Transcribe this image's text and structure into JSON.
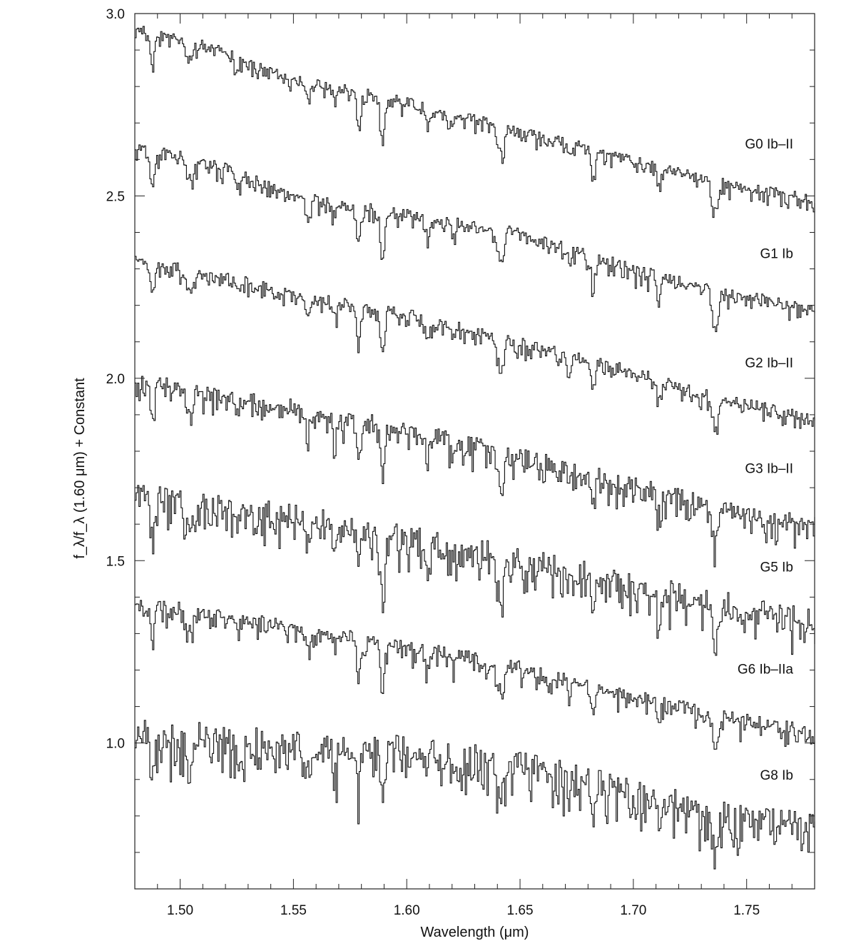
{
  "chart_data": {
    "type": "line",
    "title": "",
    "xlabel": "Wavelength (μm)",
    "ylabel": "f_λ/f_λ (1.60 μm) + Constant",
    "xlim": [
      1.48,
      1.78
    ],
    "ylim": [
      0.6,
      3.0
    ],
    "x_ticks": [
      {
        "value": 1.5,
        "label": "1.50"
      },
      {
        "value": 1.55,
        "label": "1.55"
      },
      {
        "value": 1.6,
        "label": "1.60"
      },
      {
        "value": 1.65,
        "label": "1.65"
      },
      {
        "value": 1.7,
        "label": "1.70"
      },
      {
        "value": 1.75,
        "label": "1.75"
      }
    ],
    "y_ticks": [
      {
        "value": 1.0,
        "label": "1.0"
      },
      {
        "value": 1.5,
        "label": "1.5"
      },
      {
        "value": 2.0,
        "label": "2.0"
      },
      {
        "value": 2.5,
        "label": "2.5"
      },
      {
        "value": 3.0,
        "label": "3.0"
      }
    ],
    "x_minor_step": 0.01,
    "y_minor_step": 0.1,
    "grid": false,
    "legend": "none",
    "series": [
      {
        "name": "G0 Ib–II",
        "label_y": 2.63,
        "anchors": [
          [
            1.48,
            2.96
          ],
          [
            1.52,
            2.9
          ],
          [
            1.55,
            2.82
          ],
          [
            1.6,
            2.76
          ],
          [
            1.65,
            2.68
          ],
          [
            1.7,
            2.6
          ],
          [
            1.73,
            2.55
          ],
          [
            1.78,
            2.49
          ]
        ],
        "noise": 0.012,
        "depth": 1.0
      },
      {
        "name": "G1 Ib",
        "label_y": 2.33,
        "anchors": [
          [
            1.48,
            2.64
          ],
          [
            1.52,
            2.58
          ],
          [
            1.55,
            2.5
          ],
          [
            1.6,
            2.45
          ],
          [
            1.65,
            2.4
          ],
          [
            1.7,
            2.3
          ],
          [
            1.73,
            2.25
          ],
          [
            1.78,
            2.19
          ]
        ],
        "noise": 0.014,
        "depth": 1.05
      },
      {
        "name": "G2 Ib–II",
        "label_y": 2.03,
        "anchors": [
          [
            1.48,
            2.33
          ],
          [
            1.52,
            2.28
          ],
          [
            1.55,
            2.23
          ],
          [
            1.6,
            2.18
          ],
          [
            1.65,
            2.1
          ],
          [
            1.7,
            2.02
          ],
          [
            1.73,
            1.96
          ],
          [
            1.78,
            1.89
          ]
        ],
        "noise": 0.013,
        "depth": 1.0
      },
      {
        "name": "G3 Ib–II",
        "label_y": 1.74,
        "anchors": [
          [
            1.48,
            2.0
          ],
          [
            1.52,
            1.95
          ],
          [
            1.55,
            1.92
          ],
          [
            1.6,
            1.86
          ],
          [
            1.65,
            1.79
          ],
          [
            1.7,
            1.71
          ],
          [
            1.73,
            1.66
          ],
          [
            1.78,
            1.6
          ]
        ],
        "noise": 0.022,
        "depth": 1.1
      },
      {
        "name": "G5 Ib",
        "label_y": 1.47,
        "anchors": [
          [
            1.48,
            1.7
          ],
          [
            1.52,
            1.65
          ],
          [
            1.55,
            1.63
          ],
          [
            1.6,
            1.57
          ],
          [
            1.65,
            1.51
          ],
          [
            1.7,
            1.44
          ],
          [
            1.73,
            1.4
          ],
          [
            1.78,
            1.34
          ]
        ],
        "noise": 0.028,
        "depth": 1.25
      },
      {
        "name": "G6 Ib–IIa",
        "label_y": 1.19,
        "anchors": [
          [
            1.48,
            1.39
          ],
          [
            1.52,
            1.35
          ],
          [
            1.55,
            1.32
          ],
          [
            1.6,
            1.27
          ],
          [
            1.65,
            1.21
          ],
          [
            1.7,
            1.13
          ],
          [
            1.73,
            1.09
          ],
          [
            1.78,
            1.03
          ]
        ],
        "noise": 0.016,
        "depth": 1.0
      },
      {
        "name": "G8 Ib",
        "label_y": 0.9,
        "anchors": [
          [
            1.48,
            1.03
          ],
          [
            1.52,
            1.02
          ],
          [
            1.55,
            1.0
          ],
          [
            1.6,
            0.99
          ],
          [
            1.65,
            0.95
          ],
          [
            1.7,
            0.87
          ],
          [
            1.73,
            0.82
          ],
          [
            1.78,
            0.77
          ]
        ],
        "noise": 0.035,
        "depth": 1.1
      }
    ],
    "absorption_lines": [
      {
        "x": 1.4875,
        "depth": 0.09
      },
      {
        "x": 1.503,
        "depth": 0.05
      },
      {
        "x": 1.505,
        "depth": 0.04
      },
      {
        "x": 1.525,
        "depth": 0.03
      },
      {
        "x": 1.556,
        "depth": 0.05
      },
      {
        "x": 1.568,
        "depth": 0.03
      },
      {
        "x": 1.5785,
        "depth": 0.09
      },
      {
        "x": 1.589,
        "depth": 0.13
      },
      {
        "x": 1.609,
        "depth": 0.05
      },
      {
        "x": 1.62,
        "depth": 0.03
      },
      {
        "x": 1.64,
        "depth": 0.06
      },
      {
        "x": 1.642,
        "depth": 0.08
      },
      {
        "x": 1.6715,
        "depth": 0.03
      },
      {
        "x": 1.682,
        "depth": 0.08
      },
      {
        "x": 1.711,
        "depth": 0.05
      },
      {
        "x": 1.735,
        "depth": 0.05
      },
      {
        "x": 1.7365,
        "depth": 0.07
      }
    ]
  }
}
